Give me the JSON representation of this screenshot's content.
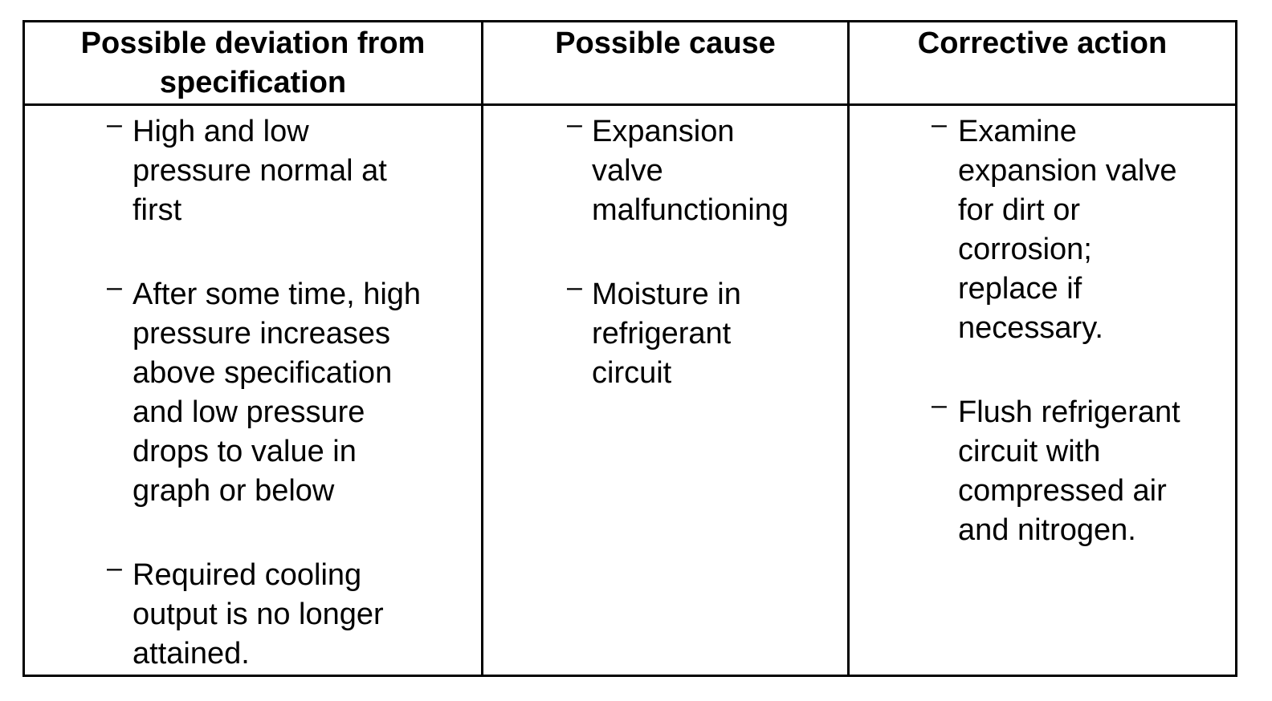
{
  "table": {
    "headers": [
      "Possible deviation from specification",
      "Possible cause",
      "Corrective action"
    ],
    "bullet": "–",
    "columns": [
      [
        [
          "High and low",
          "pressure normal at",
          "first"
        ],
        [
          "After some time, high",
          "pressure increases",
          "above specification",
          "and low pressure",
          "drops to value in",
          "graph or below"
        ],
        [
          "Required cooling",
          "output is no longer",
          "attained."
        ]
      ],
      [
        [
          "Expansion",
          "valve",
          "malfunctioning"
        ],
        [
          "Moisture in",
          "refrigerant",
          "circuit"
        ]
      ],
      [
        [
          "Examine",
          "expansion valve",
          "for dirt or",
          "corrosion;",
          "replace if",
          "necessary."
        ],
        [
          "Flush refrigerant",
          "circuit with",
          "compressed air",
          "and nitrogen."
        ]
      ]
    ]
  }
}
